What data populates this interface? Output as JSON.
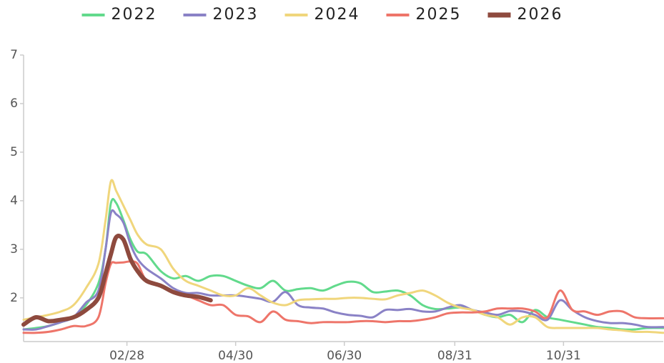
{
  "chart_data": {
    "type": "line",
    "x": [
      1,
      8,
      15,
      22,
      29,
      36,
      43,
      47,
      50,
      53,
      57,
      61,
      65,
      70,
      78,
      85,
      92,
      99,
      106,
      113,
      120,
      127,
      134,
      141,
      148,
      155,
      162,
      169,
      176,
      183,
      190,
      197,
      204,
      211,
      218,
      225,
      232,
      239,
      246,
      253,
      260,
      267,
      274,
      281,
      288,
      295,
      302,
      309,
      316,
      323,
      330,
      337,
      344,
      351,
      360
    ],
    "xlim": [
      1,
      360
    ],
    "xticks": [
      {
        "value": 59,
        "label": "02/28"
      },
      {
        "value": 120,
        "label": "04/30"
      },
      {
        "value": 181,
        "label": "06/30"
      },
      {
        "value": 243,
        "label": "08/31"
      },
      {
        "value": 304,
        "label": "10/31"
      }
    ],
    "ylim": [
      1.1,
      7
    ],
    "yticks": [
      2,
      3,
      4,
      5,
      6,
      7
    ],
    "series": [
      {
        "name": "2022",
        "color": "#62da8c",
        "width": 3,
        "values": [
          1.35,
          1.38,
          1.42,
          1.5,
          1.6,
          1.85,
          2.3,
          3.0,
          3.95,
          3.95,
          3.6,
          3.2,
          2.95,
          2.9,
          2.55,
          2.4,
          2.45,
          2.35,
          2.45,
          2.45,
          2.35,
          2.25,
          2.2,
          2.35,
          2.15,
          2.18,
          2.2,
          2.15,
          2.25,
          2.33,
          2.3,
          2.12,
          2.13,
          2.15,
          2.05,
          1.85,
          1.77,
          1.78,
          1.8,
          1.75,
          1.65,
          1.6,
          1.65,
          1.5,
          1.75,
          1.6,
          1.55,
          1.5,
          1.45,
          1.4,
          1.38,
          1.35,
          1.35,
          1.38,
          1.38
        ]
      },
      {
        "name": "2023",
        "color": "#8a82c6",
        "width": 3,
        "values": [
          1.35,
          1.35,
          1.42,
          1.5,
          1.6,
          1.9,
          2.15,
          3.0,
          3.75,
          3.72,
          3.55,
          3.1,
          2.8,
          2.6,
          2.4,
          2.2,
          2.1,
          2.1,
          2.05,
          2.05,
          2.05,
          2.02,
          1.98,
          1.92,
          2.12,
          1.85,
          1.8,
          1.78,
          1.7,
          1.65,
          1.63,
          1.6,
          1.75,
          1.75,
          1.77,
          1.72,
          1.72,
          1.8,
          1.85,
          1.75,
          1.7,
          1.65,
          1.73,
          1.72,
          1.65,
          1.55,
          1.95,
          1.75,
          1.6,
          1.52,
          1.48,
          1.48,
          1.45,
          1.4,
          1.4
        ]
      },
      {
        "name": "2024",
        "color": "#f0d67c",
        "width": 3,
        "values": [
          1.55,
          1.6,
          1.65,
          1.72,
          1.85,
          2.2,
          2.7,
          3.6,
          4.4,
          4.2,
          3.9,
          3.6,
          3.3,
          3.1,
          3.0,
          2.6,
          2.35,
          2.25,
          2.15,
          2.05,
          2.05,
          2.2,
          2.05,
          1.9,
          1.85,
          1.95,
          1.97,
          1.98,
          1.98,
          2.0,
          2.0,
          1.98,
          1.97,
          2.05,
          2.1,
          2.15,
          2.05,
          1.9,
          1.8,
          1.75,
          1.65,
          1.6,
          1.45,
          1.6,
          1.6,
          1.4,
          1.38,
          1.38,
          1.38,
          1.38,
          1.35,
          1.33,
          1.3,
          1.3,
          1.28
        ]
      },
      {
        "name": "2025",
        "color": "#ee756a",
        "width": 3,
        "values": [
          1.28,
          1.28,
          1.3,
          1.35,
          1.42,
          1.42,
          1.6,
          2.3,
          2.7,
          2.72,
          2.73,
          2.75,
          2.7,
          2.35,
          2.25,
          2.1,
          2.05,
          1.95,
          1.85,
          1.85,
          1.65,
          1.62,
          1.5,
          1.72,
          1.55,
          1.52,
          1.48,
          1.5,
          1.5,
          1.5,
          1.52,
          1.52,
          1.5,
          1.52,
          1.52,
          1.55,
          1.6,
          1.68,
          1.7,
          1.7,
          1.72,
          1.78,
          1.78,
          1.78,
          1.72,
          1.6,
          2.15,
          1.75,
          1.72,
          1.65,
          1.72,
          1.72,
          1.6,
          1.58,
          1.58
        ]
      },
      {
        "name": "2026",
        "color": "#8e4a3e",
        "width": 6,
        "values": [
          1.45,
          1.6,
          1.52,
          1.55,
          1.6,
          1.75,
          2.0,
          2.5,
          2.9,
          3.25,
          3.2,
          2.8,
          2.55,
          2.35,
          2.25,
          2.12,
          2.05,
          2.02,
          1.95,
          null,
          null,
          null,
          null,
          null,
          null,
          null,
          null,
          null,
          null,
          null,
          null,
          null,
          null,
          null,
          null,
          null,
          null,
          null,
          null,
          null,
          null,
          null,
          null,
          null,
          null,
          null,
          null,
          null,
          null,
          null,
          null,
          null,
          null,
          null,
          null
        ]
      }
    ]
  }
}
